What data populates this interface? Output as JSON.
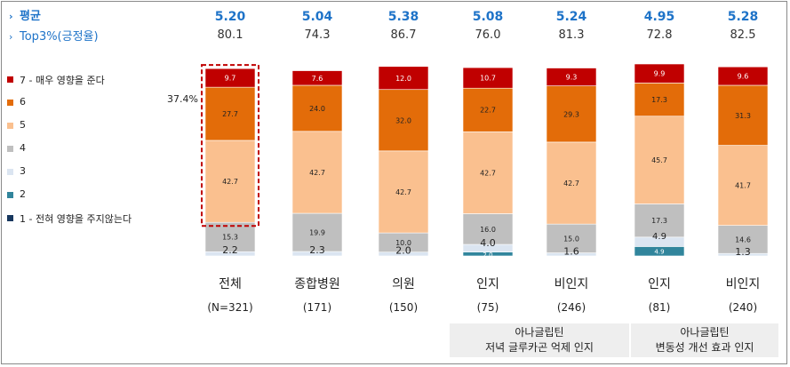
{
  "stats": {
    "avg_label": "평균",
    "top_label": "Top3%(긍정율)"
  },
  "legend": [
    {
      "label": "7 - 매우 영향을 준다",
      "color": "#c00000"
    },
    {
      "label": "6",
      "color": "#e36c09"
    },
    {
      "label": "5",
      "color": "#fac08f"
    },
    {
      "label": "4",
      "color": "#bfbfbf"
    },
    {
      "label": "3",
      "color": "#dbe5f1"
    },
    {
      "label": "2",
      "color": "#31859c"
    },
    {
      "label": "1 - 전혀 영향을 주지않는다",
      "color": "#17375e"
    }
  ],
  "highlight": {
    "top3_total": "37.4%"
  },
  "groups": [
    {
      "line1": "아나글립틴",
      "line2": "저녁 글루카곤 억제 인지"
    },
    {
      "line1": "아나글립틴",
      "line2": "변동성 개선 효과 인지"
    }
  ],
  "chart_data": {
    "type": "bar",
    "stacked": true,
    "categories": [
      "전체",
      "종합병원",
      "의원",
      "인지",
      "비인지",
      "인지",
      "비인지"
    ],
    "sample_sizes": [
      "(N=321)",
      "(171)",
      "(150)",
      "(75)",
      "(246)",
      "(81)",
      "(240)"
    ],
    "averages": [
      "5.20",
      "5.04",
      "5.38",
      "5.08",
      "5.24",
      "4.95",
      "5.28"
    ],
    "top3": [
      "80.1",
      "74.3",
      "86.7",
      "76.0",
      "81.3",
      "72.8",
      "82.5"
    ],
    "series": [
      {
        "name": "1 - 전혀 영향을 주지않는다",
        "values": [
          0,
          0,
          0,
          0,
          0,
          0,
          0
        ]
      },
      {
        "name": "2",
        "values": [
          0,
          0,
          0,
          2.0,
          0,
          4.9,
          0
        ]
      },
      {
        "name": "3",
        "values": [
          2.2,
          2.3,
          2.0,
          4.0,
          1.6,
          4.9,
          1.3
        ]
      },
      {
        "name": "4",
        "values": [
          15.3,
          19.9,
          10.0,
          16.0,
          15.0,
          17.3,
          14.6
        ]
      },
      {
        "name": "5",
        "values": [
          42.7,
          42.7,
          42.7,
          42.7,
          42.7,
          45.7,
          41.7
        ]
      },
      {
        "name": "6",
        "values": [
          27.7,
          24.0,
          32.0,
          22.7,
          29.3,
          17.3,
          31.3
        ]
      },
      {
        "name": "7 - 매우 영향을 준다",
        "values": [
          9.7,
          7.6,
          12.0,
          10.7,
          9.3,
          9.9,
          9.6
        ]
      }
    ],
    "ylim": [
      0,
      100
    ]
  }
}
